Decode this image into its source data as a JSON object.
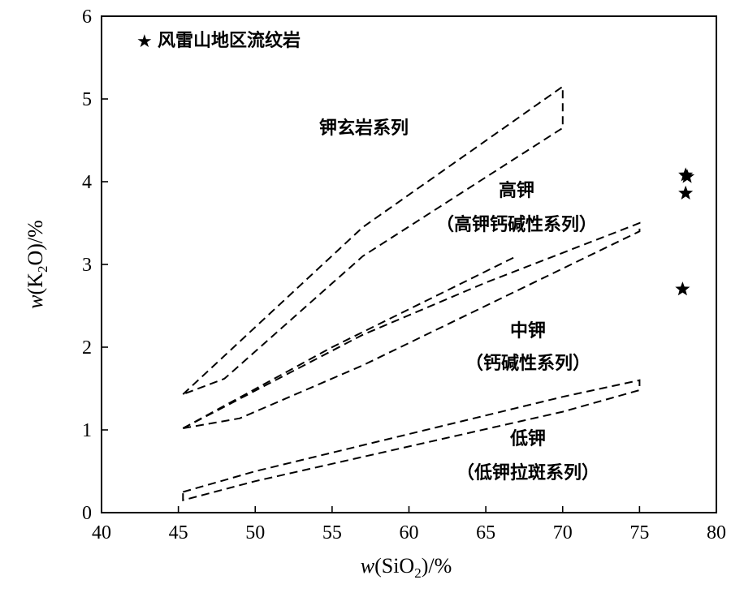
{
  "chart_data": {
    "type": "scatter",
    "xlabel_prefix": "w",
    "xlabel_formula": "SiO",
    "xlabel_sub": "2",
    "xlabel_suffix": ")/%",
    "ylabel_prefix": "w",
    "ylabel_formula": "K",
    "ylabel_sub": "2",
    "ylabel_after": "O)/%",
    "xlim": [
      40,
      80
    ],
    "ylim": [
      0,
      6
    ],
    "x_ticks": [
      "40",
      "45",
      "50",
      "55",
      "60",
      "65",
      "70",
      "75",
      "80"
    ],
    "y_ticks": [
      "0",
      "1",
      "2",
      "3",
      "4",
      "5",
      "6"
    ],
    "legend": {
      "marker": "★",
      "label": "风雷山地区流纹岩",
      "placement": "top-left"
    },
    "series": [
      {
        "name": "风雷山地区流纹岩",
        "marker": "star",
        "points": [
          {
            "x": 78.0,
            "y": 4.08
          },
          {
            "x": 78.1,
            "y": 4.06
          },
          {
            "x": 78.0,
            "y": 3.86
          },
          {
            "x": 77.8,
            "y": 2.7
          }
        ]
      }
    ],
    "fields": [
      {
        "id": "shoshonite",
        "label_lines": [
          "钾玄岩系列"
        ],
        "boundary": [
          [
            45.3,
            1.43
          ],
          [
            57,
            3.45
          ],
          [
            70,
            5.15
          ],
          [
            70,
            4.65
          ],
          [
            57,
            3.1
          ],
          [
            48,
            1.62
          ],
          [
            45.3,
            1.43
          ]
        ]
      },
      {
        "id": "high-k",
        "label_lines": [
          "高钾",
          "（高钾钙碱性系列）"
        ],
        "boundary": [
          [
            45.3,
            1.02
          ],
          [
            55,
            2.0
          ],
          [
            67,
            3.1
          ]
        ],
        "boundary2": [
          [
            45.3,
            1.02
          ],
          [
            57,
            2.15
          ],
          [
            65,
            2.78
          ],
          [
            75,
            3.5
          ],
          [
            75,
            3.4
          ],
          [
            65,
            2.5
          ],
          [
            57,
            1.78
          ],
          [
            49,
            1.14
          ],
          [
            45.3,
            1.02
          ]
        ]
      },
      {
        "id": "medium-k",
        "label_lines": [
          "中钾",
          "（钙碱性系列）"
        ]
      },
      {
        "id": "low-k",
        "label_lines": [
          "低钾",
          "（低钾拉斑系列）"
        ],
        "boundary": [
          [
            45.3,
            0.25
          ],
          [
            50,
            0.5
          ],
          [
            60,
            0.95
          ],
          [
            70,
            1.4
          ],
          [
            75,
            1.6
          ],
          [
            75,
            1.48
          ],
          [
            70,
            1.22
          ],
          [
            60,
            0.8
          ],
          [
            50,
            0.38
          ],
          [
            45.3,
            0.15
          ],
          [
            45.3,
            0.25
          ]
        ]
      }
    ],
    "grid": false
  }
}
